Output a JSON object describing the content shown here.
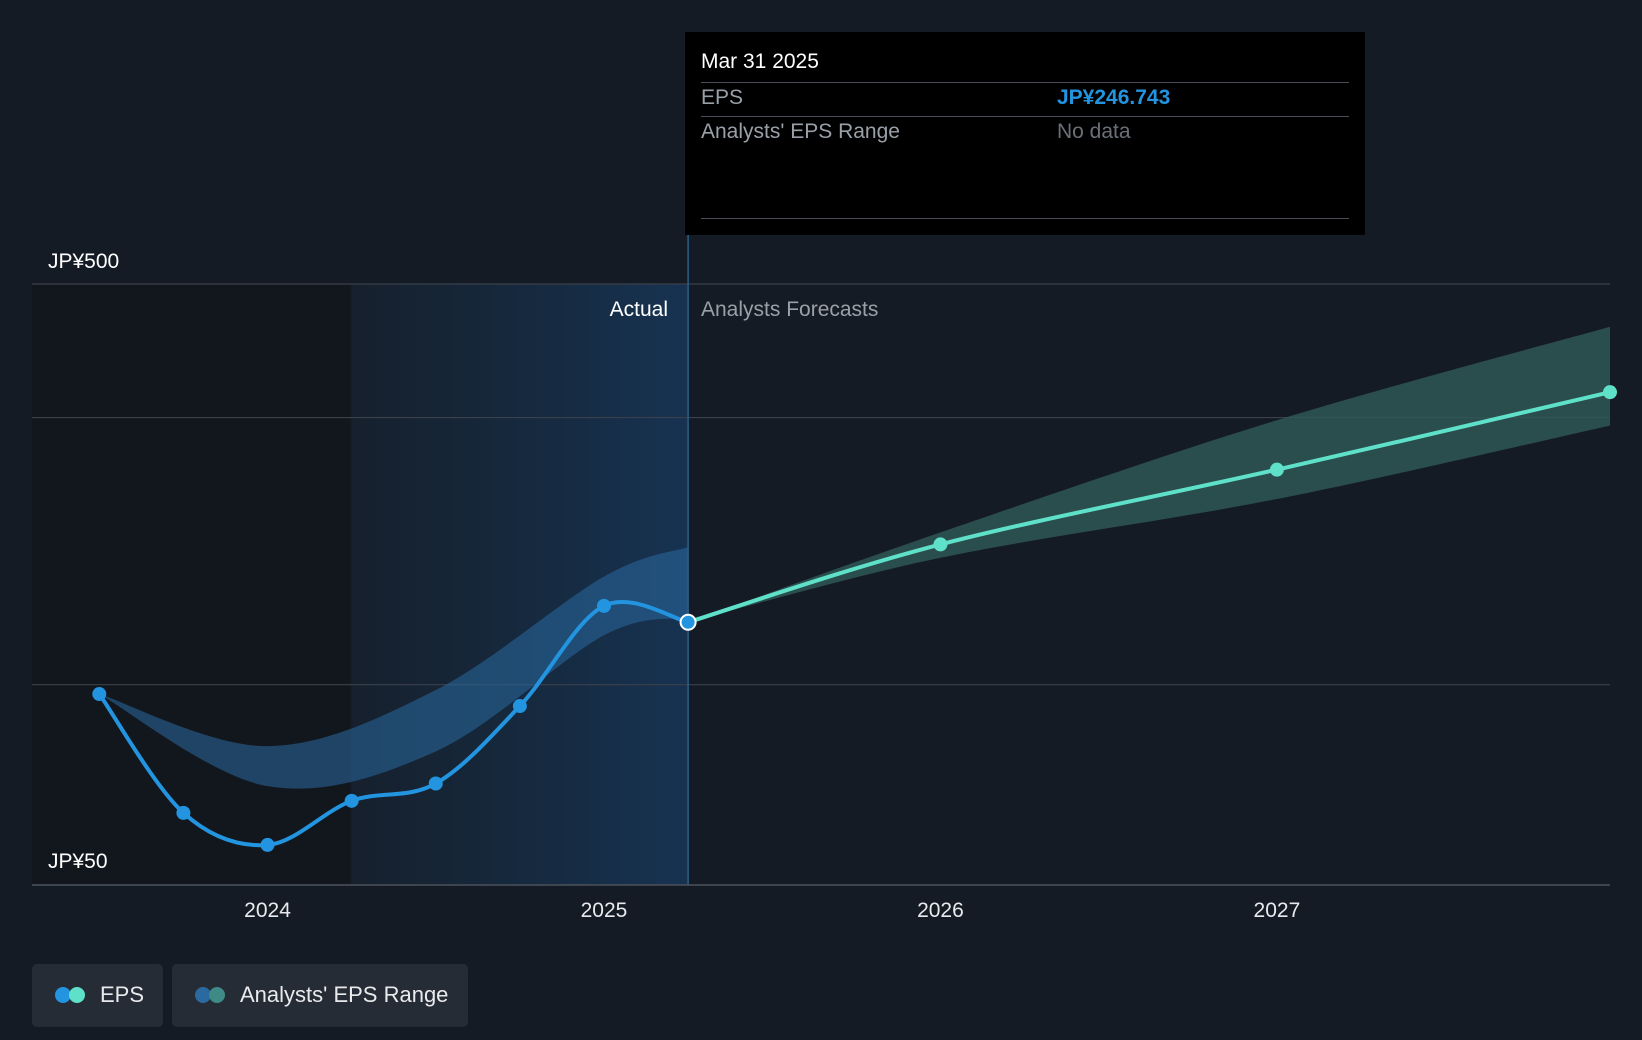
{
  "colors": {
    "background": "#151b24",
    "actual_line": "#2394e0",
    "forecast_line": "#5fe0c8",
    "actual_band": "#2a6aa0",
    "forecast_band": "#2f5a58",
    "gridline": "#3a414b",
    "tooltip_bg": "#000000",
    "tooltip_value": "#2394e0"
  },
  "tooltip": {
    "date": "Mar 31 2025",
    "rows": [
      {
        "label": "EPS",
        "value": "JP¥246.743"
      },
      {
        "label": "Analysts' EPS Range",
        "value": "No data"
      }
    ]
  },
  "legend": {
    "items": [
      {
        "label": "EPS",
        "icon": "eps-legend-icon"
      },
      {
        "label": "Analysts' EPS Range",
        "icon": "range-legend-icon"
      }
    ]
  },
  "chart_data": {
    "type": "line",
    "y_max_label": "JP¥500",
    "y_min_label": "JP¥50",
    "region_labels": {
      "actual": "Actual",
      "forecast": "Analysts Forecasts"
    },
    "x_ticks": [
      {
        "label": "2024",
        "value": 2024.0
      },
      {
        "label": "2025",
        "value": 2025.0
      },
      {
        "label": "2026",
        "value": 2026.0
      },
      {
        "label": "2027",
        "value": 2027.0
      }
    ],
    "xlim": [
      2023.3,
      2027.99
    ],
    "ylim": [
      50,
      500
    ],
    "gridlines_y": [
      500,
      400,
      200,
      50
    ],
    "actual_highlight_start": 2024.25,
    "divider_x": 2025.25,
    "series": [
      {
        "name": "EPS",
        "role": "actual",
        "points": [
          [
            2023.5,
            193
          ],
          [
            2023.75,
            104
          ],
          [
            2024.0,
            80
          ],
          [
            2024.25,
            113
          ],
          [
            2024.5,
            126
          ],
          [
            2024.75,
            184
          ],
          [
            2025.0,
            259
          ],
          [
            2025.25,
            246.743
          ]
        ]
      },
      {
        "name": "EPS",
        "role": "forecast",
        "points": [
          [
            2025.25,
            246.743
          ],
          [
            2026.0,
            305
          ],
          [
            2027.0,
            361
          ],
          [
            2027.99,
            419
          ]
        ]
      }
    ],
    "ranges": [
      {
        "name": "Analysts' EPS Range",
        "role": "actual",
        "x": [
          2023.5,
          2024.0,
          2024.5,
          2025.0,
          2025.25
        ],
        "low": [
          193,
          124,
          150,
          237,
          250
        ],
        "high": [
          193,
          154,
          196,
          281,
          303
        ]
      },
      {
        "name": "Analysts' EPS Range",
        "role": "forecast",
        "x": [
          2025.25,
          2026.0,
          2027.0,
          2027.99
        ],
        "low": [
          246.743,
          295,
          339,
          394
        ],
        "high": [
          246.743,
          314,
          398,
          468
        ]
      }
    ],
    "highlight_point": [
      2025.25,
      246.743
    ]
  }
}
